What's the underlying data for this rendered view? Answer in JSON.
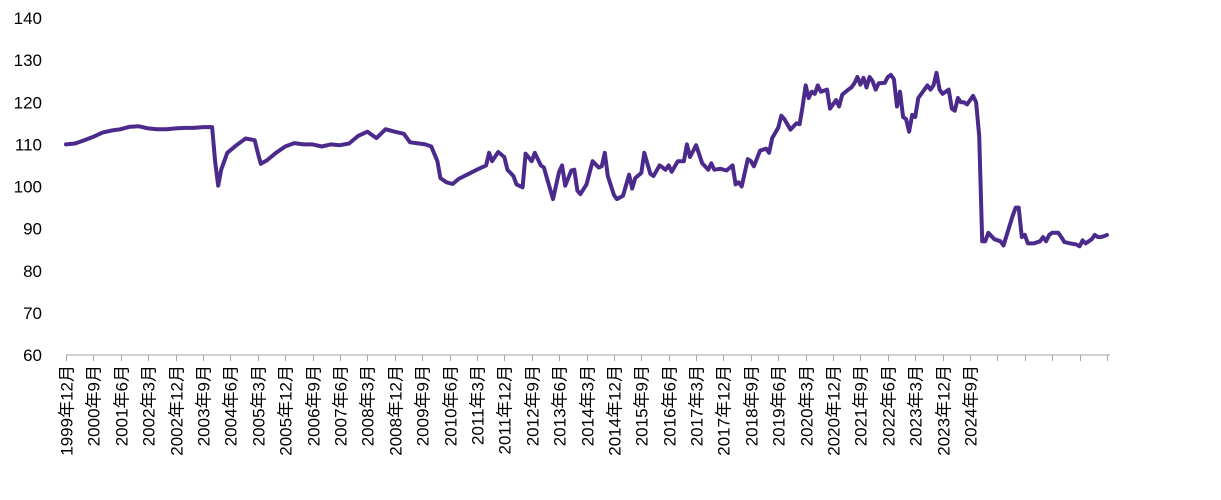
{
  "chart_data": {
    "type": "line",
    "title": "",
    "xlabel": "",
    "ylabel": "",
    "ylim": [
      60,
      140
    ],
    "y_ticks": [
      60,
      70,
      80,
      90,
      100,
      110,
      120,
      130,
      140
    ],
    "grid": false,
    "legend": "none",
    "x_tick_labels": [
      "1999年12月",
      "2000年9月",
      "2001年6月",
      "2002年3月",
      "2002年12月",
      "2003年9月",
      "2004年6月",
      "2005年3月",
      "2005年12月",
      "2006年9月",
      "2007年6月",
      "2008年3月",
      "2008年12月",
      "2009年9月",
      "2010年6月",
      "2011年3月",
      "2011年12月",
      "2012年9月",
      "2013年6月",
      "2014年3月",
      "2014年12月",
      "2015年9月",
      "2016年6月",
      "2017年3月",
      "2017年12月",
      "2018年9月",
      "2019年6月",
      "2020年3月",
      "2020年12月",
      "2021年9月",
      "2022年6月",
      "2023年3月",
      "2023年12月",
      "2024年9月"
    ],
    "series": [
      {
        "color": "#4b2a8c",
        "points": [
          [
            0,
            110.0
          ],
          [
            3,
            110.2
          ],
          [
            6,
            111.0
          ],
          [
            9,
            111.8
          ],
          [
            12,
            112.8
          ],
          [
            15,
            113.3
          ],
          [
            18,
            113.6
          ],
          [
            21,
            114.2
          ],
          [
            24,
            114.3
          ],
          [
            27,
            113.8
          ],
          [
            30,
            113.6
          ],
          [
            33,
            113.6
          ],
          [
            36,
            113.8
          ],
          [
            39,
            113.9
          ],
          [
            42,
            113.9
          ],
          [
            45,
            114.1
          ],
          [
            48,
            114.1
          ],
          [
            49,
            106.0
          ],
          [
            50,
            100.2
          ],
          [
            51,
            104.0
          ],
          [
            53,
            108.0
          ],
          [
            56,
            109.8
          ],
          [
            59,
            111.4
          ],
          [
            62,
            111.0
          ],
          [
            63,
            108.0
          ],
          [
            64,
            105.4
          ],
          [
            66,
            106.2
          ],
          [
            69,
            108.0
          ],
          [
            72,
            109.5
          ],
          [
            75,
            110.3
          ],
          [
            78,
            110.0
          ],
          [
            81,
            110.0
          ],
          [
            84,
            109.5
          ],
          [
            87,
            110.0
          ],
          [
            90,
            109.8
          ],
          [
            93,
            110.2
          ],
          [
            96,
            112.0
          ],
          [
            99,
            113.0
          ],
          [
            102,
            111.5
          ],
          [
            105,
            113.6
          ],
          [
            108,
            113.0
          ],
          [
            111,
            112.5
          ],
          [
            113,
            110.5
          ],
          [
            116,
            110.2
          ],
          [
            118,
            110.0
          ],
          [
            120,
            109.5
          ],
          [
            122,
            106.0
          ],
          [
            123,
            102.0
          ],
          [
            125,
            101.0
          ],
          [
            127,
            100.6
          ],
          [
            129,
            101.8
          ],
          [
            132,
            102.9
          ],
          [
            135,
            104.0
          ],
          [
            138,
            105.0
          ],
          [
            139,
            108.0
          ],
          [
            140,
            106.0
          ],
          [
            142,
            108.2
          ],
          [
            144,
            107.0
          ],
          [
            145,
            104.0
          ],
          [
            147,
            102.5
          ],
          [
            148,
            100.5
          ],
          [
            150,
            99.8
          ],
          [
            151,
            107.8
          ],
          [
            153,
            106.0
          ],
          [
            154,
            108.0
          ],
          [
            156,
            105.0
          ],
          [
            157,
            104.5
          ],
          [
            158,
            102.0
          ],
          [
            160,
            97.0
          ],
          [
            162,
            103.5
          ],
          [
            163,
            105.0
          ],
          [
            164,
            100.2
          ],
          [
            166,
            103.8
          ],
          [
            167,
            104.0
          ],
          [
            168,
            99.0
          ],
          [
            169,
            98.2
          ],
          [
            171,
            100.5
          ],
          [
            173,
            106.0
          ],
          [
            175,
            104.5
          ],
          [
            176,
            104.8
          ],
          [
            177,
            108.0
          ],
          [
            178,
            102.5
          ],
          [
            180,
            98.0
          ],
          [
            181,
            97.0
          ],
          [
            183,
            97.8
          ],
          [
            185,
            102.8
          ],
          [
            186,
            99.5
          ],
          [
            187,
            102.0
          ],
          [
            189,
            103.2
          ],
          [
            190,
            108.0
          ],
          [
            192,
            103.0
          ],
          [
            193,
            102.5
          ],
          [
            195,
            105.0
          ],
          [
            196,
            104.5
          ],
          [
            197,
            104.0
          ],
          [
            198,
            105.0
          ],
          [
            199,
            103.5
          ],
          [
            201,
            106.0
          ],
          [
            203,
            106.0
          ],
          [
            204,
            110.0
          ],
          [
            205,
            107.0
          ],
          [
            207,
            109.8
          ],
          [
            209,
            105.5
          ],
          [
            211,
            104.0
          ],
          [
            212,
            105.5
          ],
          [
            213,
            104.0
          ],
          [
            215,
            104.2
          ],
          [
            217,
            103.8
          ],
          [
            219,
            105.0
          ],
          [
            220,
            100.5
          ],
          [
            221,
            101.0
          ],
          [
            222,
            100.0
          ],
          [
            224,
            106.5
          ],
          [
            225,
            106.0
          ],
          [
            226,
            104.8
          ],
          [
            228,
            108.5
          ],
          [
            230,
            109.0
          ],
          [
            231,
            108.0
          ],
          [
            232,
            111.5
          ],
          [
            234,
            114.0
          ],
          [
            235,
            116.8
          ],
          [
            236,
            116.0
          ],
          [
            238,
            113.5
          ],
          [
            240,
            115.0
          ],
          [
            241,
            114.8
          ],
          [
            242,
            119.0
          ],
          [
            243,
            124.0
          ],
          [
            244,
            121.0
          ],
          [
            245,
            122.5
          ],
          [
            246,
            122.0
          ],
          [
            247,
            124.0
          ],
          [
            248,
            122.5
          ],
          [
            250,
            123.0
          ],
          [
            251,
            118.5
          ],
          [
            253,
            120.5
          ],
          [
            254,
            119.0
          ],
          [
            255,
            121.8
          ],
          [
            257,
            123.0
          ],
          [
            258,
            123.5
          ],
          [
            259,
            124.5
          ],
          [
            260,
            126.0
          ],
          [
            261,
            124.2
          ],
          [
            262,
            125.8
          ],
          [
            263,
            123.5
          ],
          [
            264,
            126.0
          ],
          [
            265,
            125.0
          ],
          [
            266,
            123.0
          ],
          [
            267,
            124.5
          ],
          [
            269,
            124.6
          ],
          [
            270,
            126.0
          ],
          [
            271,
            126.5
          ],
          [
            272,
            125.5
          ],
          [
            273,
            119.0
          ],
          [
            274,
            122.5
          ],
          [
            275,
            116.5
          ],
          [
            276,
            116.0
          ],
          [
            277,
            113.0
          ],
          [
            278,
            117.0
          ],
          [
            279,
            116.5
          ],
          [
            280,
            121.0
          ],
          [
            282,
            123.0
          ],
          [
            283,
            124.0
          ],
          [
            284,
            123.0
          ],
          [
            285,
            124.0
          ],
          [
            286,
            127.0
          ],
          [
            287,
            123.0
          ],
          [
            288,
            122.0
          ],
          [
            290,
            123.0
          ],
          [
            291,
            118.5
          ],
          [
            292,
            118.0
          ],
          [
            293,
            121.0
          ],
          [
            294,
            120.0
          ],
          [
            295,
            120.0
          ],
          [
            296,
            119.5
          ],
          [
            298,
            121.5
          ],
          [
            299,
            120.0
          ],
          [
            300,
            112.0
          ],
          [
            301,
            87.0
          ],
          [
            302,
            87.0
          ],
          [
            303,
            89.0
          ],
          [
            305,
            87.5
          ],
          [
            307,
            87.0
          ],
          [
            308,
            86.0
          ],
          [
            311,
            93.0
          ],
          [
            312,
            95.0
          ],
          [
            313,
            95.0
          ],
          [
            314,
            88.0
          ],
          [
            315,
            88.5
          ],
          [
            316,
            86.5
          ],
          [
            318,
            86.5
          ],
          [
            320,
            87.0
          ],
          [
            321,
            88.0
          ],
          [
            322,
            87.0
          ],
          [
            323,
            88.5
          ],
          [
            324,
            89.0
          ],
          [
            326,
            89.0
          ],
          [
            327,
            88.0
          ],
          [
            328,
            86.8
          ],
          [
            330,
            86.5
          ],
          [
            332,
            86.2
          ],
          [
            333,
            85.8
          ],
          [
            334,
            87.2
          ],
          [
            335,
            86.5
          ],
          [
            336,
            87.0
          ],
          [
            337,
            87.5
          ],
          [
            338,
            88.5
          ],
          [
            339,
            88.0
          ],
          [
            340,
            88.0
          ],
          [
            341,
            88.2
          ],
          [
            342,
            88.5
          ]
        ]
      }
    ]
  }
}
